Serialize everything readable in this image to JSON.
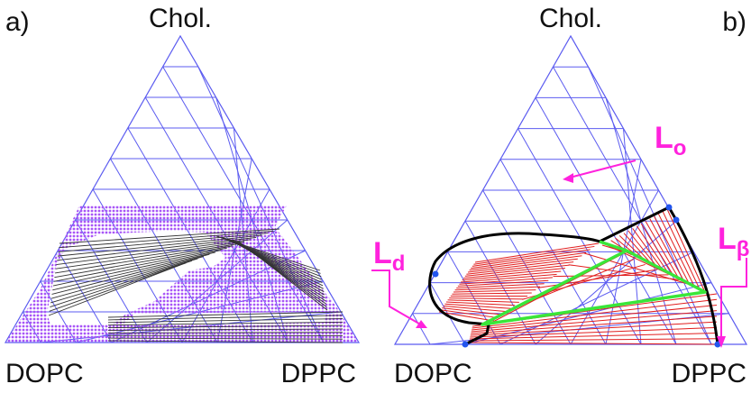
{
  "panel_a": {
    "label": "a)",
    "apex_top": "Chol.",
    "apex_left": "DOPC",
    "apex_right": "DPPC"
  },
  "panel_b": {
    "label": "b)",
    "apex_top": "Chol.",
    "apex_left": "DOPC",
    "apex_right": "DPPC",
    "phases": {
      "lo": {
        "main": "L",
        "sub": "o"
      },
      "ld": {
        "main": "L",
        "sub": "d"
      },
      "lbeta": {
        "main": "L",
        "sub": "β"
      }
    }
  },
  "colors": {
    "grid": "#5b5bf0",
    "dots": "#a855f7",
    "tielines": "#333333",
    "red": "#e11d1d",
    "green": "#39e639",
    "magenta": "#ff22dd",
    "outline": "#000000",
    "marker": "#2255ee"
  }
}
